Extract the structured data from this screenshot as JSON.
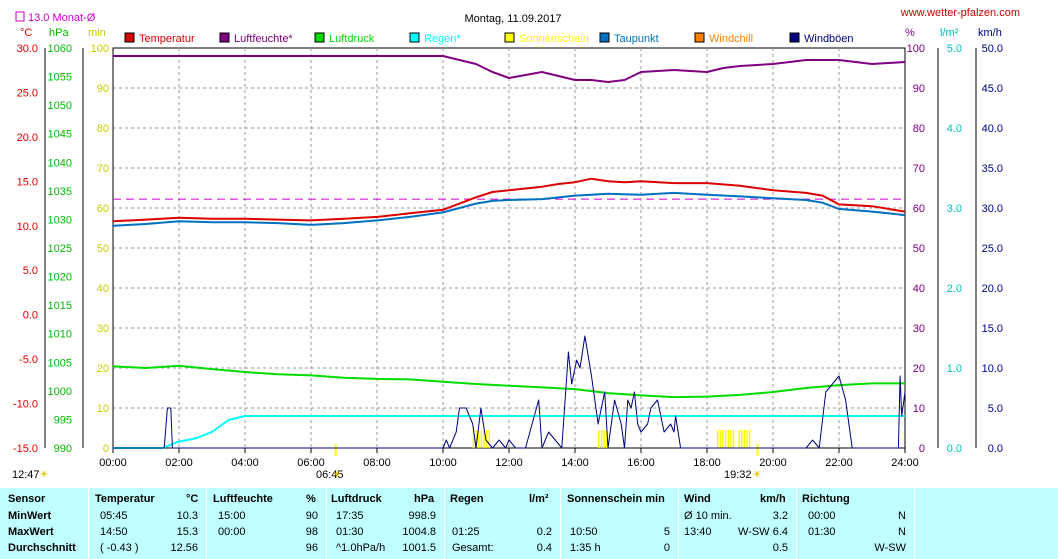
{
  "header": {
    "title": "Montag, 11.09.2017",
    "site": "www.wetter-pfalzen.com",
    "monthly_avg_label": "13.0 Monat-Ø",
    "unit_celsius": "°C",
    "unit_hpa": "hPa",
    "unit_min": "min",
    "unit_percent": "%",
    "unit_lm2": "l/m²",
    "unit_kmh": "km/h",
    "sunrise": "06:45",
    "sunset": "19:32",
    "daylength": "12:47"
  },
  "legend": [
    {
      "label": "Temperatur",
      "color": "#dd0000"
    },
    {
      "label": "Luftfeuchte*",
      "color": "#800080"
    },
    {
      "label": "Luftdruck",
      "color": "#00dd00"
    },
    {
      "label": "Regen*",
      "color": "#00ffff"
    },
    {
      "label": "Sonnenschein",
      "color": "#ffff00"
    },
    {
      "label": "Taupunkt",
      "color": "#0070c0"
    },
    {
      "label": "Windchill",
      "color": "#ff8000"
    },
    {
      "label": "Windböen",
      "color": "#000080"
    }
  ],
  "chart_data": {
    "type": "line",
    "x_ticks": [
      "00:00",
      "02:00",
      "04:00",
      "06:00",
      "08:00",
      "10:00",
      "12:00",
      "14:00",
      "16:00",
      "18:00",
      "20:00",
      "22:00",
      "24:00"
    ],
    "axes": {
      "temp_c": {
        "ticks": [
          "30.0",
          "25.0",
          "20.0",
          "15.0",
          "10.0",
          "5.0",
          "0.0",
          "-5.0",
          "-10.0",
          "-15.0"
        ],
        "range": [
          -15,
          30
        ],
        "color": "#dd0000"
      },
      "pressure_hpa": {
        "ticks": [
          "1060",
          "1055",
          "1050",
          "1045",
          "1040",
          "1035",
          "1030",
          "1025",
          "1020",
          "1015",
          "1010",
          "1005",
          "1000",
          "995",
          "990"
        ],
        "range": [
          990,
          1060
        ],
        "color": "#00bb00"
      },
      "sun_min": {
        "ticks": [
          "100",
          "90",
          "80",
          "70",
          "60",
          "50",
          "40",
          "30",
          "20",
          "10",
          "0"
        ],
        "range": [
          0,
          100
        ],
        "color": "#cccc00"
      },
      "humidity_pct": {
        "ticks": [
          "100",
          "90",
          "80",
          "70",
          "60",
          "50",
          "40",
          "30",
          "20",
          "10",
          "0"
        ],
        "range": [
          0,
          100
        ],
        "color": "#800080"
      },
      "rain_lm2": {
        "ticks": [
          "5.0",
          "4.0",
          "3.0",
          "2.0",
          "1.0",
          "0.0"
        ],
        "range": [
          0,
          5
        ],
        "color": "#00c0c0"
      },
      "wind_kmh": {
        "ticks": [
          "50.0",
          "45.0",
          "40.0",
          "35.0",
          "30.0",
          "25.0",
          "20.0",
          "15.0",
          "10.0",
          "5.0",
          "0.0"
        ],
        "range": [
          0,
          50
        ],
        "color": "#000080"
      }
    },
    "monthly_avg_temp": 13.0,
    "series": [
      {
        "name": "Luftfeuchte*",
        "axis": "humidity_pct",
        "color": "#800080",
        "x": [
          0,
          2,
          4,
          6,
          8,
          10,
          10.5,
          11,
          11.5,
          12,
          13,
          14,
          14.5,
          15,
          15.5,
          16,
          17,
          18,
          18.5,
          19,
          20,
          21,
          22,
          22.5,
          23,
          24
        ],
        "y": [
          98,
          98,
          98,
          98,
          98,
          98,
          97,
          96,
          94,
          92.5,
          94,
          92,
          92,
          91.5,
          92,
          94,
          94.5,
          94,
          95,
          95.5,
          96,
          97,
          97,
          96.5,
          96,
          96.5
        ]
      },
      {
        "name": "Temperatur",
        "axis": "temp_c",
        "color": "#dd0000",
        "x": [
          0,
          1,
          2,
          3,
          4,
          5,
          6,
          7,
          8,
          9,
          10,
          10.5,
          11,
          11.5,
          12,
          13,
          13.5,
          14,
          14.5,
          15,
          15.5,
          16,
          17,
          18,
          19,
          20,
          21,
          21.5,
          22,
          23,
          24
        ],
        "y": [
          10.5,
          10.7,
          10.9,
          10.8,
          10.8,
          10.7,
          10.6,
          10.8,
          11.0,
          11.4,
          11.8,
          12.5,
          13.2,
          13.8,
          14.0,
          14.4,
          14.7,
          14.9,
          15.3,
          15.0,
          14.9,
          15.0,
          14.8,
          14.8,
          14.5,
          14.0,
          13.7,
          13.4,
          12.4,
          12.2,
          11.6
        ]
      },
      {
        "name": "Taupunkt",
        "axis": "temp_c",
        "color": "#0070c0",
        "x": [
          0,
          1,
          2,
          3,
          4,
          5,
          6,
          7,
          8,
          9,
          10,
          10.5,
          11,
          11.5,
          12,
          13,
          14,
          14.5,
          15,
          16,
          17,
          18,
          19,
          20,
          21,
          21.5,
          22,
          23,
          24
        ],
        "y": [
          10.0,
          10.2,
          10.5,
          10.4,
          10.4,
          10.3,
          10.1,
          10.3,
          10.6,
          11.0,
          11.5,
          12.0,
          12.5,
          12.8,
          12.9,
          13.0,
          13.4,
          13.5,
          13.6,
          13.5,
          13.7,
          13.5,
          13.3,
          13.1,
          12.9,
          12.6,
          11.9,
          11.6,
          11.2
        ]
      },
      {
        "name": "Luftdruck",
        "axis": "pressure_hpa",
        "color": "#00dd00",
        "x": [
          0,
          1,
          2,
          3,
          4,
          5,
          6,
          7,
          8,
          9,
          10,
          11,
          12,
          13,
          14,
          15,
          16,
          17,
          18,
          19,
          20,
          21,
          22,
          23,
          24
        ],
        "y": [
          1004.3,
          1004.0,
          1004.4,
          1003.8,
          1003.3,
          1002.9,
          1002.7,
          1002.3,
          1002.1,
          1002.0,
          1001.6,
          1001.2,
          1000.9,
          1000.6,
          1000.3,
          999.6,
          999.2,
          998.9,
          999.0,
          999.3,
          999.8,
          1000.5,
          1001.0,
          1001.3,
          1001.3
        ]
      },
      {
        "name": "Regen*",
        "axis": "rain_lm2",
        "color": "#00ffff",
        "x": [
          0,
          1.5,
          2,
          2.5,
          3,
          3.5,
          4,
          24
        ],
        "y": [
          0,
          0,
          0.08,
          0.12,
          0.2,
          0.35,
          0.4,
          0.4
        ]
      },
      {
        "name": "Windböen",
        "axis": "wind_kmh",
        "color": "#000080",
        "x": [
          0,
          1.5,
          1.55,
          1.65,
          1.75,
          1.8,
          10.0,
          10.1,
          10.2,
          10.4,
          10.5,
          10.7,
          10.9,
          11.0,
          11.15,
          11.3,
          11.5,
          11.7,
          11.9,
          12.0,
          12.2,
          12.5,
          12.7,
          12.9,
          13.0,
          13.2,
          13.4,
          13.6,
          13.8,
          13.9,
          14.0,
          14.05,
          14.15,
          14.3,
          14.5,
          14.7,
          14.9,
          15.0,
          15.2,
          15.4,
          15.5,
          15.6,
          15.7,
          15.8,
          15.9,
          16.0,
          16.2,
          16.3,
          16.5,
          16.7,
          16.9,
          17.0,
          17.05,
          17.2,
          17.3,
          21.0,
          21.2,
          21.4,
          21.6,
          21.8,
          22.0,
          22.2,
          22.4,
          23.8,
          23.85,
          23.9,
          24.0
        ],
        "y": [
          0,
          0,
          0,
          5,
          5,
          0,
          0,
          1,
          0,
          2,
          5,
          5,
          3,
          0,
          5,
          1,
          0,
          1,
          0,
          1,
          0,
          0,
          3,
          6,
          0,
          2,
          1,
          0,
          12,
          8,
          10,
          11,
          10,
          14,
          9,
          3,
          7,
          0,
          6,
          3,
          0,
          6,
          5,
          7,
          3,
          2,
          3,
          5,
          6,
          2,
          3,
          2,
          4,
          0,
          0,
          0,
          1,
          0,
          7,
          8,
          9,
          6,
          0,
          0,
          9,
          4,
          7
        ]
      }
    ],
    "sunshine_bars": [
      {
        "start": 10.9,
        "end": 11.4
      },
      {
        "start": 14.7,
        "end": 15.0
      },
      {
        "start": 18.3,
        "end": 18.8
      },
      {
        "start": 18.95,
        "end": 19.3
      }
    ]
  },
  "table": {
    "headers": {
      "sensor": "Sensor",
      "temp": "Temperatur",
      "temp_unit": "°C",
      "hum": "Luftfeuchte",
      "hum_unit": "%",
      "press": "Luftdruck",
      "press_unit": "hPa",
      "rain": "Regen",
      "rain_unit": "l/m²",
      "sun": "Sonnenschein min",
      "wind": "Wind",
      "wind_unit": "km/h",
      "dir": "Richtung"
    },
    "rows": [
      {
        "label": "MinWert",
        "temp_time": "05:45",
        "temp_val": "10.3",
        "hum_time": "15:00",
        "hum_val": "90",
        "press_time": "17:35",
        "press_val": "998.9",
        "rain_time": "",
        "rain_val": "",
        "sun_time": "",
        "sun_val": "",
        "wind_time": "Ø 10 min.",
        "wind_dir": "",
        "wind_val": "3.2",
        "dir_time": "00:00",
        "dir_val": "N"
      },
      {
        "label": "MaxWert",
        "temp_time": "14:50",
        "temp_val": "15.3",
        "hum_time": "00:00",
        "hum_val": "98",
        "press_time": "01:30",
        "press_val": "1004.8",
        "rain_time": "01:25",
        "rain_val": "0.2",
        "sun_time": "10:50",
        "sun_val": "5",
        "wind_time": "13:40",
        "wind_dir": "W-SW",
        "wind_val": "6.4",
        "dir_time": "01:30",
        "dir_val": "N"
      },
      {
        "label": "Durchschnitt",
        "temp_time": "( -0.43 )",
        "temp_val": "12.56",
        "hum_time": "",
        "hum_val": "96",
        "press_time": "^1.0hPa/h",
        "press_val": "1001.5",
        "rain_time": "Gesamt:",
        "rain_val": "0.4",
        "sun_time": "1:35 h",
        "sun_val": "0",
        "wind_time": "",
        "wind_dir": "",
        "wind_val": "0.5",
        "dir_time": "",
        "dir_val": "W-SW"
      }
    ]
  }
}
